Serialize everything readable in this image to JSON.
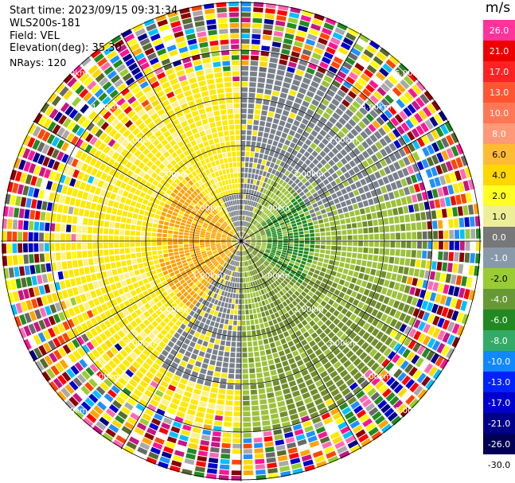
{
  "header": {
    "start_time": "Start time: 2023/09/15 09:31:34",
    "instrument": "WLS200s-181",
    "field": "Field: VEL",
    "elevation": "Elevation(deg): 35.30",
    "nrays": "NRays: 120"
  },
  "range_rings": [
    {
      "label": "1.00km"
    },
    {
      "label": "2.00km"
    },
    {
      "label": "3.00km"
    },
    {
      "label": "4.00km"
    },
    {
      "label": "5.00km"
    }
  ],
  "colorbar": {
    "unit": "m/s",
    "ticks": [
      "26.0",
      "21.0",
      "17.0",
      "13.0",
      "10.0",
      "8.0",
      "6.0",
      "4.0",
      "2.0",
      "1.0",
      "0.0",
      "-1.0",
      "-2.0",
      "-4.0",
      "-6.0",
      "-8.0",
      "-10.0",
      "-13.0",
      "-17.0",
      "-21.0",
      "-26.0",
      "-30.0"
    ],
    "colors": [
      "#ff3399",
      "#ee0000",
      "#ff2222",
      "#ff5533",
      "#ff7755",
      "#ff9977",
      "#ffbb33",
      "#ffd700",
      "#ffff22",
      "#eeee99",
      "#777777",
      "#8899aa",
      "#99cc33",
      "#669933",
      "#228822",
      "#33aa66",
      "#1188ff",
      "#0022ff",
      "#0000cc",
      "#000088",
      "#000055",
      "#ffffff"
    ]
  },
  "palette": {
    "yellow": "#ffe800",
    "yellow_light": "#fff08a",
    "orange": "#ffa000",
    "gray": "#788089",
    "green_light": "#9cc23a",
    "green_olive": "#6f8d2a",
    "green_dark": "#1e8a1e",
    "noise": [
      "#ff1493",
      "#ff69b4",
      "#0000cd",
      "#00008b",
      "#ff0000",
      "#ffa500",
      "#ffff00",
      "#ffe800",
      "#9acd32",
      "#228b22",
      "#556b2f",
      "#00bfff",
      "#1e90ff",
      "#696969",
      "#a9a9a9",
      "#ff4500",
      "#ffd700",
      "#8b0000",
      "#ffffff",
      "#c71585"
    ]
  }
}
